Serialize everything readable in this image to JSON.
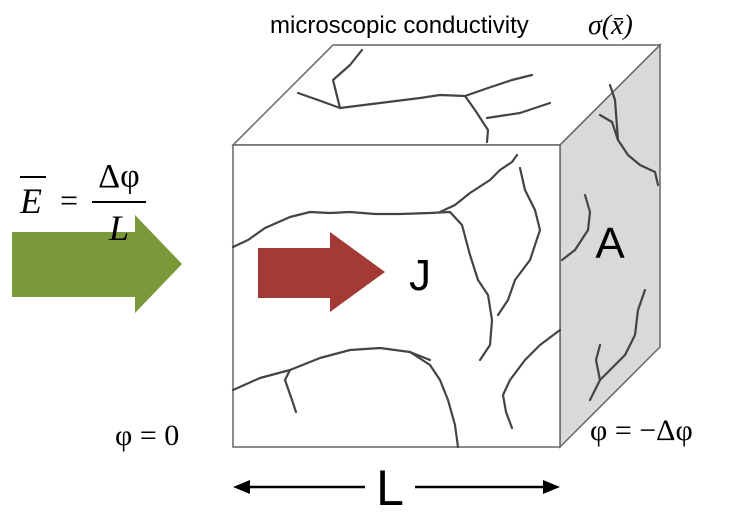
{
  "title": "microscopic conductivity",
  "conductivity_symbol": "σ(x̄)",
  "field": {
    "lhs": "E",
    "equals": "=",
    "numerator": "Δφ",
    "denominator": "L"
  },
  "labels": {
    "current": "J",
    "area": "A",
    "left_potential": "φ = 0",
    "right_potential": "φ = −Δφ",
    "length": "L"
  }
}
